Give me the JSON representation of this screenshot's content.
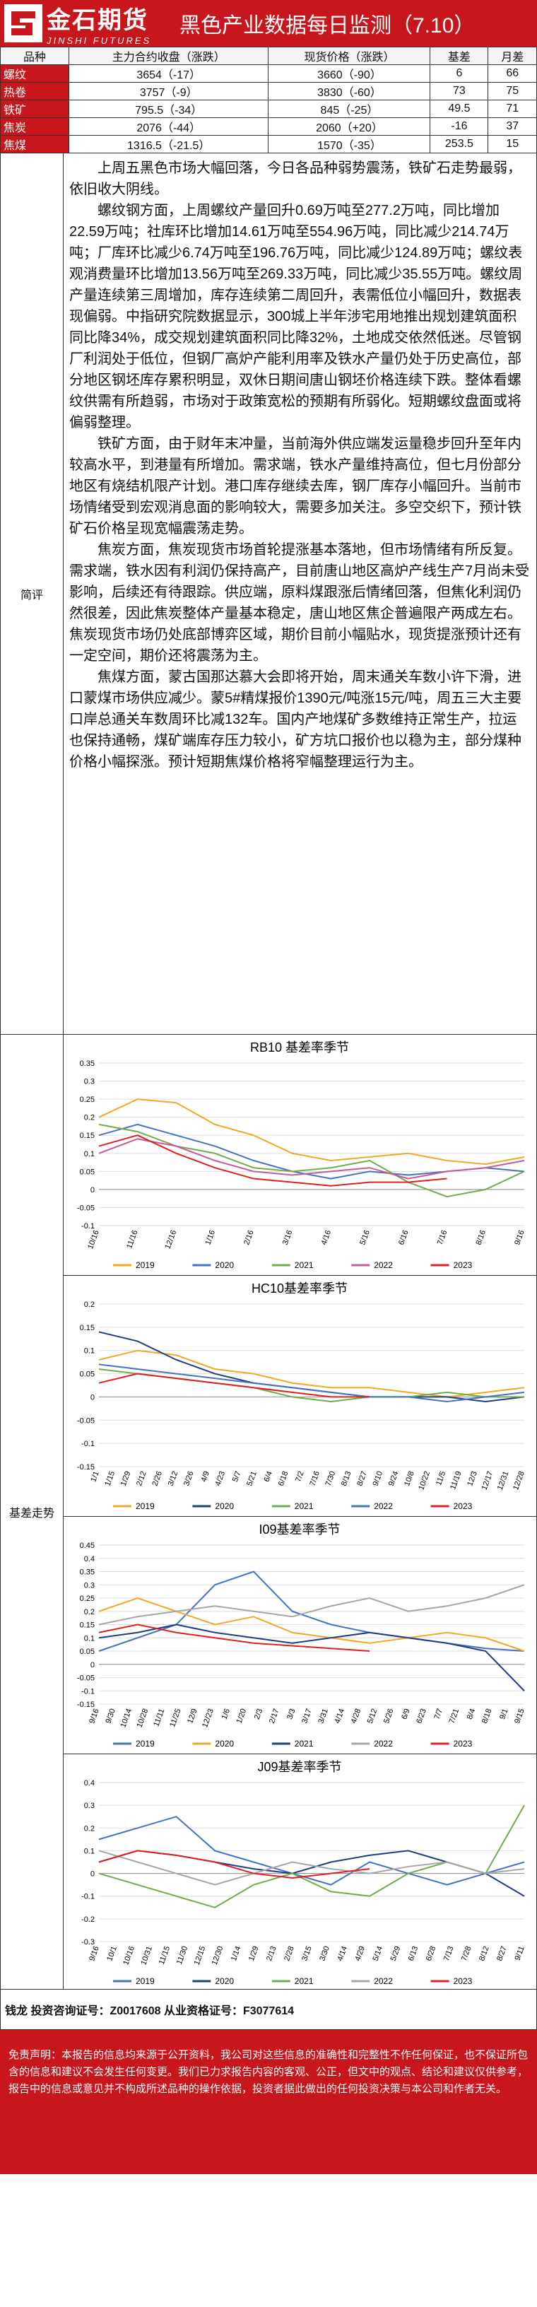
{
  "header": {
    "logo_text_cn": "金石期货",
    "logo_text_en": "JINSHI FUTURES",
    "title": "黑色产业数据每日监测（7.10）"
  },
  "table": {
    "headers": [
      "品种",
      "主力合约收盘（涨跌）",
      "现货价格（涨跌）",
      "基差",
      "月差"
    ],
    "rows": [
      [
        "螺纹",
        "3654（-17）",
        "3660（-90）",
        "6",
        "66"
      ],
      [
        "热卷",
        "3757（-9）",
        "3830（-60）",
        "73",
        "75"
      ],
      [
        "铁矿",
        "795.5（-34）",
        "845（-25）",
        "49.5",
        "71"
      ],
      [
        "焦炭",
        "2076（-44）",
        "2060（+20）",
        "-16",
        "37"
      ],
      [
        "焦煤",
        "1316.5（-21.5）",
        "1570（-35）",
        "253.5",
        "15"
      ]
    ]
  },
  "summary": {
    "label": "简评",
    "paragraphs": [
      "上周五黑色市场大幅回落，今日各品种弱势震荡，铁矿石走势最弱，依旧收大阴线。",
      "螺纹钢方面，上周螺纹产量回升0.69万吨至277.2万吨，同比增加22.59万吨；社库环比增加14.61万吨至554.96万吨，同比减少214.74万吨；厂库环比减少6.74万吨至196.76万吨，同比减少124.89万吨；螺纹表观消费量环比增加13.56万吨至269.33万吨，同比减少35.55万吨。螺纹周产量连续第三周增加，库存连续第二周回升，表需低位小幅回升，数据表现偏弱。中指研究院数据显示，300城上半年涉宅用地推出规划建筑面积同比降34%，成交规划建筑面积同比降32%，土地成交依然低迷。尽管钢厂利润处于低位，但钢厂高炉产能利用率及铁水产量仍处于历史高位，部分地区钢坯库存累积明显，双休日期间唐山钢坯价格连续下跌。整体看螺纹供需有所趋弱，市场对于政策宽松的预期有所弱化。短期螺纹盘面或将偏弱整理。",
      "铁矿方面，由于财年末冲量，当前海外供应端发运量稳步回升至年内较高水平，到港量有所增加。需求端，铁水产量维持高位，但七月份部分地区有烧结机限产计划。港口库存继续去库，钢厂库存小幅回升。当前市场情绪受到宏观消息面的影响较大，需要多加关注。多空交织下，预计铁矿石价格呈现宽幅震荡走势。",
      "焦炭方面，焦炭现货市场首轮提涨基本落地，但市场情绪有所反复。需求端，铁水因有利润仍保持高产，目前唐山地区高炉产线生产7月尚未受影响，后续还有待跟踪。供应端，原料煤跟涨后情绪回落，但焦化利润仍然很差，因此焦炭整体产量基本稳定，唐山地区焦企普遍限产两成左右。焦炭现货市场仍处底部博弈区域，期价目前小幅贴水，现货提涨预计还有一定空间，期价还将震荡为主。",
      "焦煤方面，蒙古国那达慕大会即将开始，周末通关车数小许下滑，进口蒙煤市场供应减少。蒙5#精煤报价1390元/吨涨15元/吨，周五三大主要口岸总通关车数周环比减132车。国内产地煤矿多数维持正常生产，拉运也保持通畅，煤矿端库存压力较小，矿方坑口报价也以稳为主，部分煤种价格小幅探涨。预计短期焦煤价格将窄幅整理运行为主。"
    ]
  },
  "charts_section": {
    "label": "基差走势"
  },
  "chart_data": [
    {
      "type": "line",
      "title": "RB10 基差率季节",
      "ylim": [
        -0.1,
        0.35
      ],
      "yticks": [
        "0.35",
        "0.3",
        "0.25",
        "0.2",
        "0.15",
        "0.1",
        "0.05",
        "0",
        "-0.05",
        "-0.1"
      ],
      "xticks": [
        "10/16",
        "11/16",
        "12/16",
        "1/16",
        "2/16",
        "3/16",
        "4/16",
        "5/16",
        "6/16",
        "7/16",
        "8/16",
        "9/16"
      ],
      "series": [
        {
          "name": "2019",
          "color": "#f5a623",
          "values": [
            0.2,
            0.25,
            0.24,
            0.18,
            0.15,
            0.1,
            0.08,
            0.09,
            0.1,
            0.08,
            0.07,
            0.09
          ]
        },
        {
          "name": "2020",
          "color": "#4472c4",
          "values": [
            0.15,
            0.18,
            0.15,
            0.12,
            0.08,
            0.05,
            0.03,
            0.05,
            0.04,
            0.05,
            0.06,
            0.05
          ]
        },
        {
          "name": "2021",
          "color": "#70ad47",
          "values": [
            0.18,
            0.16,
            0.12,
            0.1,
            0.06,
            0.05,
            0.06,
            0.08,
            0.02,
            -0.02,
            0.0,
            0.05
          ]
        },
        {
          "name": "2022",
          "color": "#c55a99",
          "values": [
            0.1,
            0.14,
            0.12,
            0.08,
            0.05,
            0.04,
            0.05,
            0.06,
            0.03,
            0.05,
            0.06,
            0.08
          ]
        },
        {
          "name": "2023",
          "color": "#e02020",
          "values": [
            0.12,
            0.15,
            0.1,
            0.06,
            0.03,
            0.02,
            0.01,
            0.02,
            0.02,
            0.03
          ]
        }
      ]
    },
    {
      "type": "line",
      "title": "HC10基差率季节",
      "ylim": [
        -0.15,
        0.2
      ],
      "yticks": [
        "0.2",
        "0.15",
        "0.1",
        "0.05",
        "0",
        "-0.05",
        "-0.1",
        "-0.15"
      ],
      "xticks": [
        "1/1",
        "1/15",
        "1/29",
        "2/12",
        "2/26",
        "3/12",
        "3/26",
        "4/9",
        "4/23",
        "5/7",
        "5/21",
        "6/4",
        "6/18",
        "7/2",
        "7/16",
        "7/30",
        "8/13",
        "8/27",
        "9/10",
        "9/24",
        "10/8",
        "10/22",
        "11/5",
        "11/19",
        "12/3",
        "12/17",
        "12/31",
        "12/28"
      ],
      "series": [
        {
          "name": "2019",
          "color": "#f5a623",
          "values": [
            0.08,
            0.1,
            0.09,
            0.06,
            0.05,
            0.03,
            0.02,
            0.02,
            0.01,
            0.0,
            0.01,
            0.02
          ]
        },
        {
          "name": "2020",
          "color": "#1f3c88",
          "values": [
            0.14,
            0.12,
            0.08,
            0.05,
            0.03,
            0.02,
            0.01,
            0.0,
            0.0,
            0.0,
            -0.01,
            0.0
          ]
        },
        {
          "name": "2021",
          "color": "#70ad47",
          "values": [
            0.06,
            0.05,
            0.04,
            0.03,
            0.02,
            0.0,
            -0.01,
            0.0,
            0.0,
            0.01,
            0.0,
            0.0
          ]
        },
        {
          "name": "2022",
          "color": "#4472c4",
          "values": [
            0.07,
            0.06,
            0.05,
            0.04,
            0.03,
            0.02,
            0.01,
            0.0,
            0.0,
            -0.01,
            0.0,
            0.01
          ]
        },
        {
          "name": "2023",
          "color": "#e02020",
          "values": [
            0.03,
            0.05,
            0.04,
            0.03,
            0.02,
            0.01,
            0.0,
            0.0
          ]
        }
      ]
    },
    {
      "type": "line",
      "title": "I09基差率季节",
      "ylim": [
        -0.15,
        0.45
      ],
      "yticks": [
        "0.45",
        "0.4",
        "0.35",
        "0.3",
        "0.25",
        "0.2",
        "0.15",
        "0.1",
        "0.05",
        "0",
        "-0.05",
        "-0.1",
        "-0.15"
      ],
      "xticks": [
        "9/16",
        "9/30",
        "10/14",
        "10/28",
        "11/11",
        "11/25",
        "12/9",
        "12/23",
        "1/6",
        "1/20",
        "2/3",
        "2/17",
        "3/3",
        "3/17",
        "3/31",
        "4/14",
        "4/28",
        "5/12",
        "5/26",
        "6/9",
        "6/23",
        "7/7",
        "7/21",
        "8/4",
        "8/18",
        "9/1",
        "9/15"
      ],
      "series": [
        {
          "name": "2019",
          "color": "#4472c4",
          "values": [
            0.05,
            0.1,
            0.15,
            0.3,
            0.35,
            0.2,
            0.15,
            0.12,
            0.1,
            0.08,
            0.06,
            0.05
          ]
        },
        {
          "name": "2020",
          "color": "#f5a623",
          "values": [
            0.2,
            0.25,
            0.2,
            0.15,
            0.18,
            0.12,
            0.1,
            0.08,
            0.1,
            0.12,
            0.1,
            0.05
          ]
        },
        {
          "name": "2021",
          "color": "#1f3c88",
          "values": [
            0.1,
            0.12,
            0.15,
            0.12,
            0.1,
            0.08,
            0.1,
            0.12,
            0.1,
            0.08,
            0.05,
            -0.1
          ]
        },
        {
          "name": "2022",
          "color": "#a6a6a6",
          "values": [
            0.15,
            0.18,
            0.2,
            0.22,
            0.2,
            0.18,
            0.22,
            0.25,
            0.2,
            0.22,
            0.25,
            0.3
          ]
        },
        {
          "name": "2023",
          "color": "#e02020",
          "values": [
            0.12,
            0.15,
            0.12,
            0.1,
            0.08,
            0.07,
            0.06,
            0.05
          ]
        }
      ]
    },
    {
      "type": "line",
      "title": "J09基差率季节",
      "ylim": [
        -0.3,
        0.4
      ],
      "yticks": [
        "0.4",
        "0.3",
        "0.2",
        "0.1",
        "0",
        "-0.1",
        "-0.2",
        "-0.3"
      ],
      "xticks": [
        "9/16",
        "10/1",
        "10/16",
        "10/31",
        "11/15",
        "11/30",
        "12/15",
        "12/30",
        "1/14",
        "1/29",
        "2/13",
        "2/28",
        "3/15",
        "3/30",
        "4/14",
        "4/29",
        "5/14",
        "5/29",
        "6/13",
        "6/28",
        "7/13",
        "7/28",
        "8/12",
        "8/27",
        "9/11"
      ],
      "series": [
        {
          "name": "2019",
          "color": "#4472c4",
          "values": [
            0.15,
            0.2,
            0.25,
            0.1,
            0.05,
            0.0,
            -0.05,
            0.05,
            0.0,
            -0.05,
            0.0,
            0.05
          ]
        },
        {
          "name": "2020",
          "color": "#1f3c88",
          "values": [
            0.05,
            0.1,
            0.08,
            0.05,
            0.02,
            0.0,
            0.05,
            0.08,
            0.1,
            0.05,
            0.0,
            -0.1
          ]
        },
        {
          "name": "2021",
          "color": "#70ad47",
          "values": [
            0.0,
            -0.05,
            -0.1,
            -0.15,
            -0.05,
            0.0,
            -0.08,
            -0.1,
            0.0,
            0.05,
            0.0,
            0.3
          ]
        },
        {
          "name": "2022",
          "color": "#a6a6a6",
          "values": [
            0.1,
            0.05,
            0.0,
            -0.05,
            0.0,
            0.05,
            0.02,
            0.0,
            0.03,
            0.05,
            0.0,
            0.02
          ]
        },
        {
          "name": "2023",
          "color": "#e02020",
          "values": [
            0.05,
            0.1,
            0.08,
            0.05,
            0.0,
            -0.02,
            0.0,
            0.02
          ]
        }
      ]
    }
  ],
  "footer": {
    "analyst": "钱龙 投资咨询证号：Z0017608 从业资格证号：F3077614"
  },
  "disclaimer": {
    "text": "免责声明：本报告的信息均来源于公开资料，我公司对这些信息的准确性和完整性不作任何保证，也不保证所包含的信息和建议不会发生任何变更。我们已力求报告内容的客观、公正，但文中的观点、结论和建议仅供参考，报告中的信息或意见并不构成所述品种的操作依据，投资者据此做出的任何投资决策与本公司和作者无关。"
  }
}
